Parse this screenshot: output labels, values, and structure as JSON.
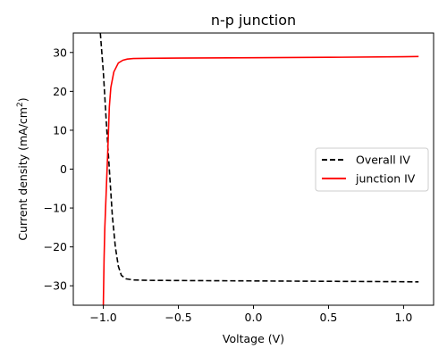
{
  "chart_data": {
    "type": "line",
    "title": "n-p junction",
    "xlabel": "Voltage (V)",
    "ylabel_main": "Current density (mA/cm",
    "ylabel_sup": "2",
    "ylabel_close": ")",
    "xlim": [
      -1.2,
      1.2
    ],
    "ylim": [
      -35,
      35
    ],
    "xticks": [
      -1.0,
      -0.5,
      0.0,
      0.5,
      1.0
    ],
    "xtick_labels": [
      "−1.0",
      "−0.5",
      "0.0",
      "0.5",
      "1.0"
    ],
    "yticks": [
      -30,
      -20,
      -10,
      0,
      10,
      20,
      30
    ],
    "ytick_labels": [
      "−30",
      "−20",
      "−10",
      "0",
      "10",
      "20",
      "30"
    ],
    "grid": false,
    "legend_position": "center-right",
    "series": [
      {
        "name": "Overall IV",
        "color": "#000000",
        "style": "dashed",
        "x": [
          -1.02,
          -1.0,
          -0.98,
          -0.96,
          -0.94,
          -0.92,
          -0.9,
          -0.88,
          -0.85,
          -0.8,
          -0.7,
          -0.5,
          0.0,
          0.5,
          1.0,
          1.1
        ],
        "y": [
          35,
          25,
          12,
          0,
          -12,
          -20,
          -25,
          -27.3,
          -28.2,
          -28.5,
          -28.6,
          -28.65,
          -28.75,
          -28.85,
          -28.95,
          -29.0
        ]
      },
      {
        "name": "junction IV",
        "color": "#ff0000",
        "style": "solid",
        "x": [
          -1.0,
          -0.995,
          -0.99,
          -0.98,
          -0.97,
          -0.96,
          -0.95,
          -0.93,
          -0.9,
          -0.87,
          -0.84,
          -0.8,
          -0.7,
          -0.5,
          0.0,
          0.5,
          1.0,
          1.1
        ],
        "y": [
          -35,
          -23,
          -15,
          -5,
          5,
          16,
          21,
          25,
          27.3,
          28.0,
          28.3,
          28.45,
          28.5,
          28.55,
          28.65,
          28.75,
          28.9,
          28.95
        ]
      }
    ]
  }
}
